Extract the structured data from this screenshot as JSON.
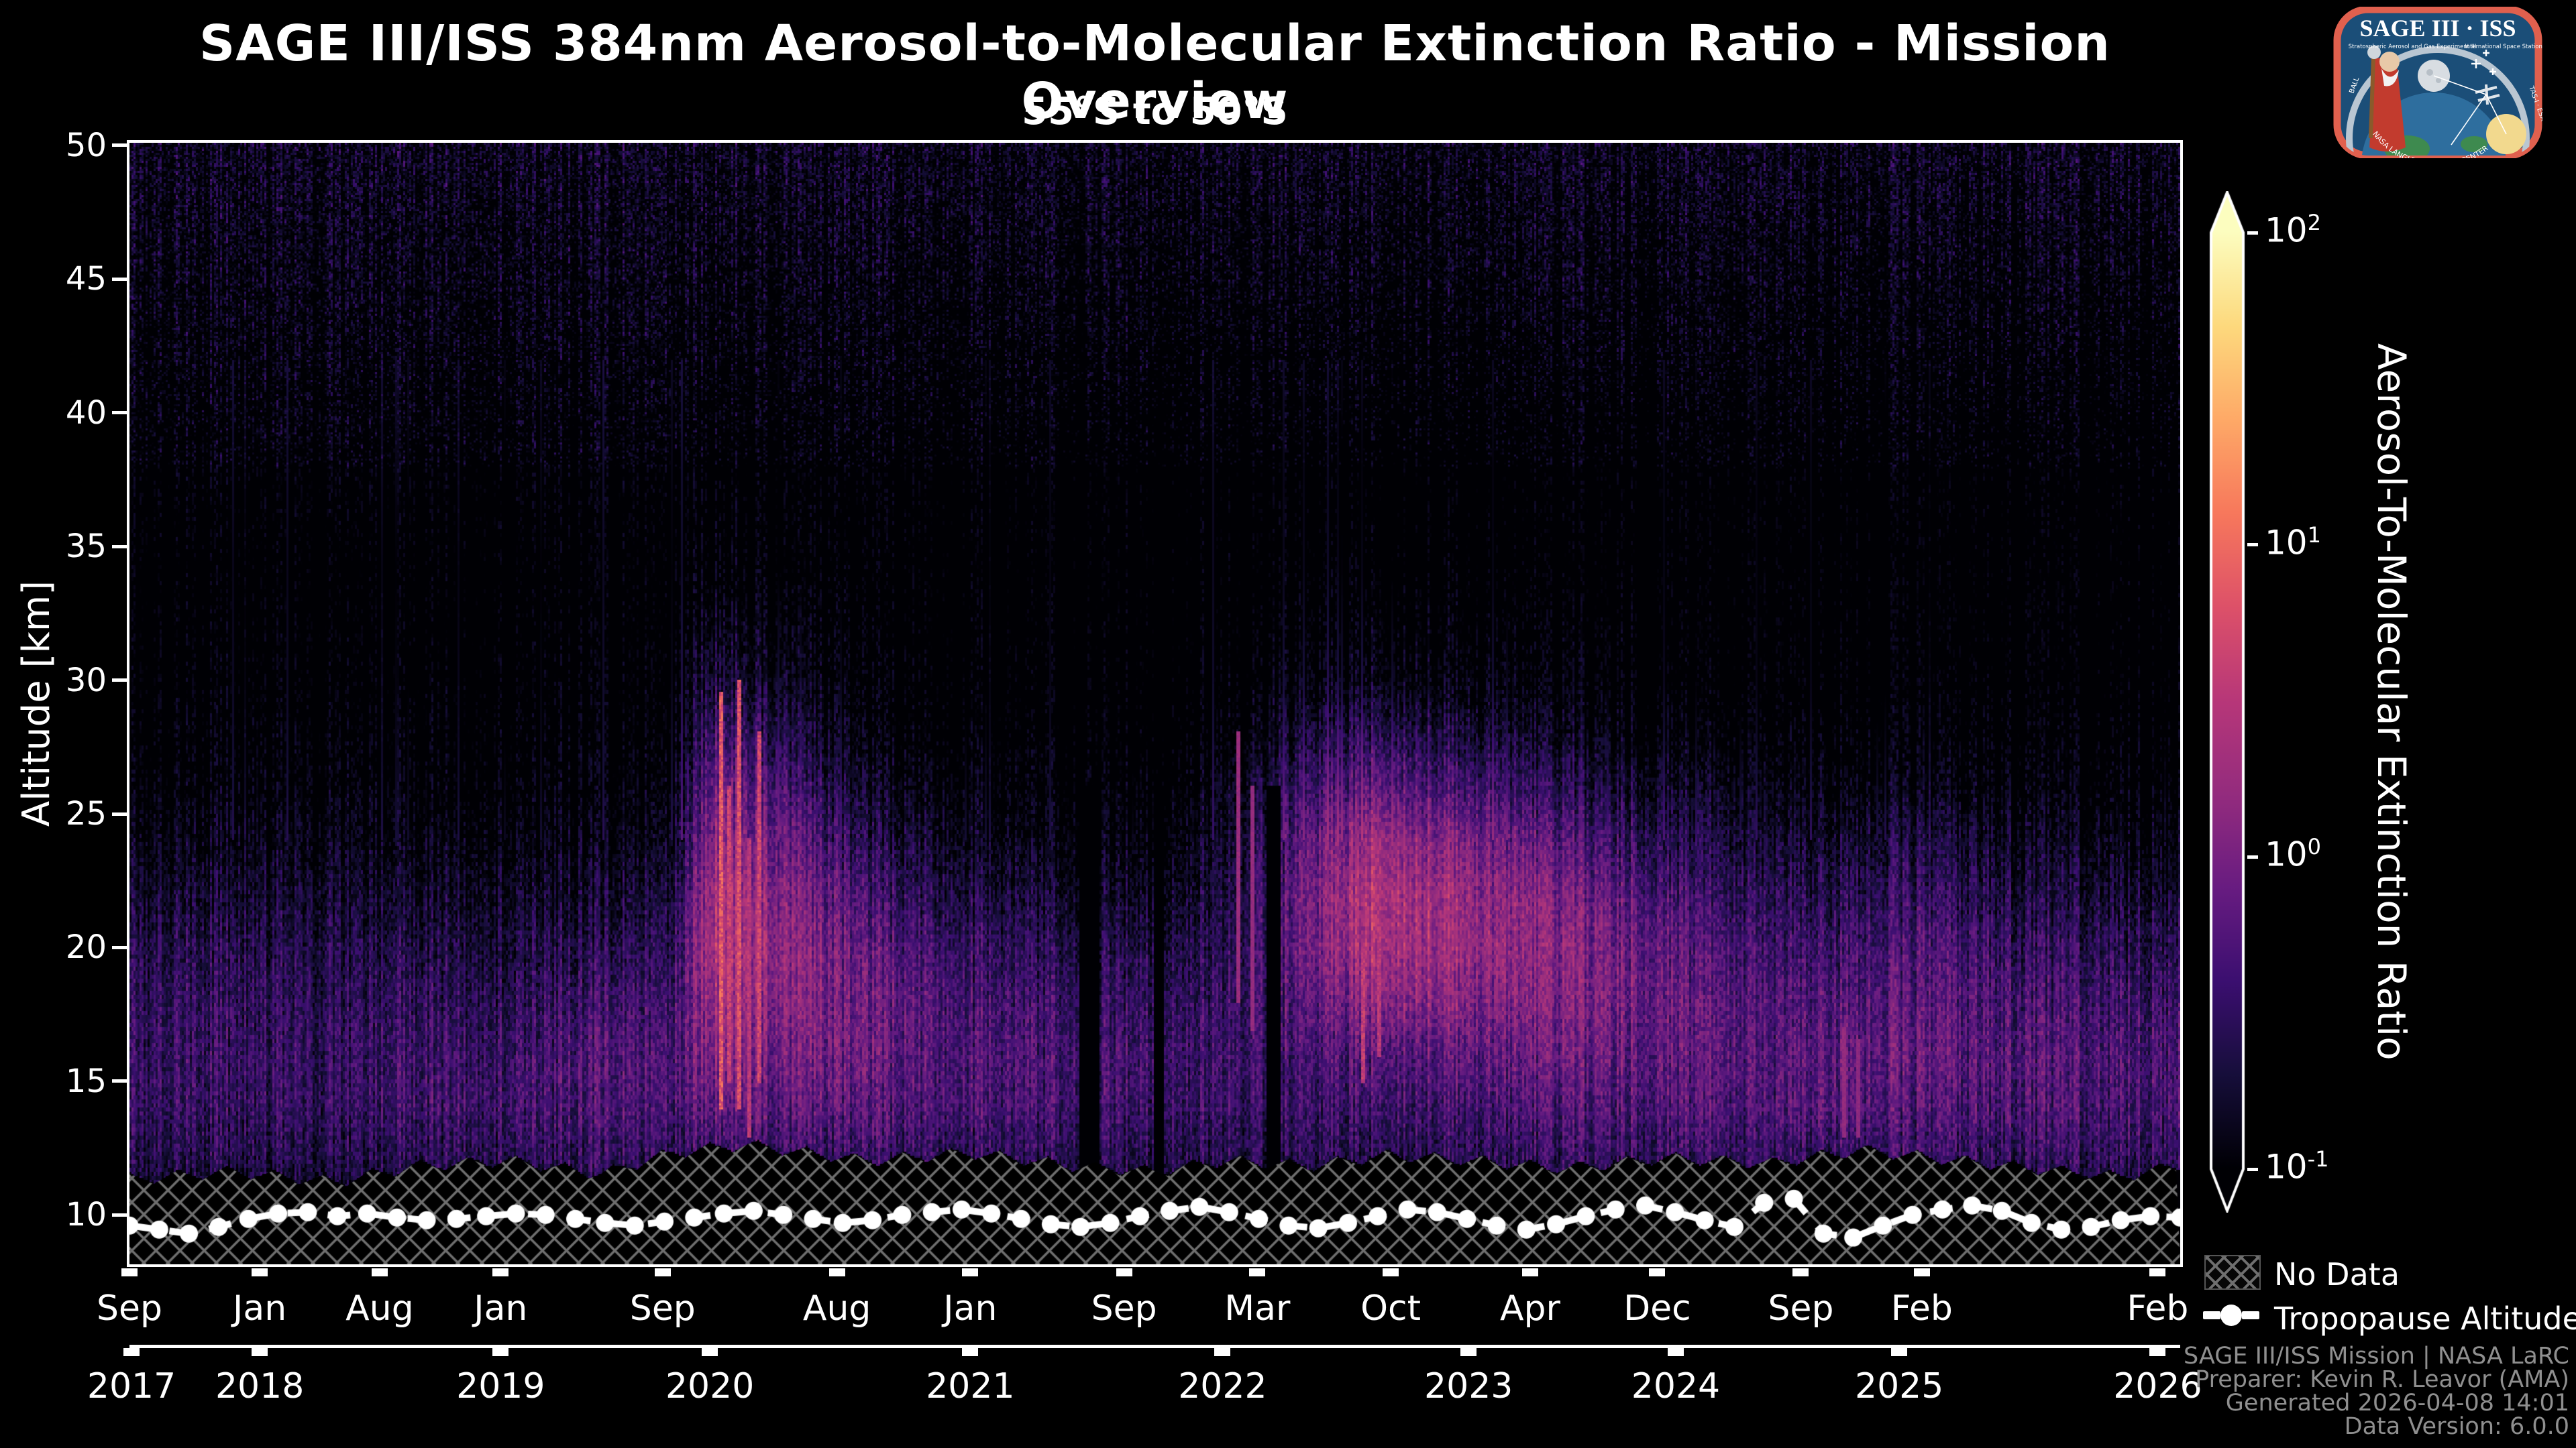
{
  "page": {
    "background": "#000000"
  },
  "header": {
    "title": "SAGE III/ISS 384nm Aerosol-to-Molecular Extinction Ratio - Mission Overview",
    "subtitle": "55°S to 50°S"
  },
  "logo": {
    "title": "SAGE III · ISS",
    "subtitle_left": "Stratospheric Aerosol and Gas Experiment III",
    "subtitle_right": "International Space Station",
    "maker_left": "BALL",
    "ring_text": "NASA LANGLEY RESEARCH CENTER",
    "maker_right": "TAS-I · ESA",
    "border_color": "#e0604e",
    "bg_color": "#1b4e78",
    "ring_color": "#b9c6d2"
  },
  "legend": {
    "no_data": "No Data",
    "tropopause": "Tropopause Altitude"
  },
  "footer": {
    "lines": [
      "SAGE III/ISS Mission | NASA LaRC",
      "Preparer: Kevin R. Leavor (AMA)",
      "Generated 2026-04-08 14:01",
      "Data Version: 6.0.0"
    ],
    "color": "#8f8f8f"
  },
  "chart_data": {
    "type": "heatmap",
    "title": "SAGE III/ISS 384nm Aerosol-to-Molecular Extinction Ratio - Mission Overview",
    "subtitle": "55°S to 50°S",
    "ylabel": "Altitude [km]",
    "colorbar_label": "Aerosol-To-Molecular Extinction Ratio",
    "grid": false,
    "y_axis": {
      "min": 8.15,
      "max": 50.1,
      "ticks": [
        50,
        45,
        40,
        35,
        30,
        25,
        20,
        15,
        10
      ]
    },
    "x_axis": {
      "month_ticks": [
        {
          "label": "Sep",
          "f": 0.0
        },
        {
          "label": "Jan",
          "f": 0.0635
        },
        {
          "label": "Aug",
          "f": 0.122
        },
        {
          "label": "Jan",
          "f": 0.181
        },
        {
          "label": "Sep",
          "f": 0.26
        },
        {
          "label": "Aug",
          "f": 0.345
        },
        {
          "label": "Jan",
          "f": 0.41
        },
        {
          "label": "Sep",
          "f": 0.485
        },
        {
          "label": "Mar",
          "f": 0.55
        },
        {
          "label": "Oct",
          "f": 0.615
        },
        {
          "label": "Apr",
          "f": 0.683
        },
        {
          "label": "Dec",
          "f": 0.745
        },
        {
          "label": "Sep",
          "f": 0.815
        },
        {
          "label": "Feb",
          "f": 0.874
        },
        {
          "label": "Feb",
          "f": 0.989
        }
      ],
      "year_ticks": [
        {
          "label": "2017",
          "f": 0.001
        },
        {
          "label": "2018",
          "f": 0.0635
        },
        {
          "label": "2019",
          "f": 0.181
        },
        {
          "label": "2020",
          "f": 0.283
        },
        {
          "label": "2021",
          "f": 0.41
        },
        {
          "label": "2022",
          "f": 0.533
        },
        {
          "label": "2023",
          "f": 0.653
        },
        {
          "label": "2024",
          "f": 0.754
        },
        {
          "label": "2025",
          "f": 0.863
        },
        {
          "label": "2026",
          "f": 0.989
        }
      ]
    },
    "colorbar": {
      "scale": "log",
      "min_exp": -1,
      "max_exp": 2,
      "ticks": [
        {
          "base": "10",
          "exp": "2",
          "value": 2
        },
        {
          "base": "10",
          "exp": "1",
          "value": 1
        },
        {
          "base": "10",
          "exp": "0",
          "value": 0
        },
        {
          "base": "10",
          "exp": "-1",
          "value": -1
        }
      ]
    },
    "colormap_stops": [
      [
        0.0,
        [
          0,
          0,
          4
        ]
      ],
      [
        0.1,
        [
          22,
          14,
          58
        ]
      ],
      [
        0.2,
        [
          59,
          15,
          112
        ]
      ],
      [
        0.3,
        [
          104,
          28,
          129
        ]
      ],
      [
        0.4,
        [
          148,
          44,
          126
        ]
      ],
      [
        0.5,
        [
          183,
          55,
          121
        ]
      ],
      [
        0.6,
        [
          221,
          81,
          105
        ]
      ],
      [
        0.7,
        [
          247,
          120,
          92
        ]
      ],
      [
        0.8,
        [
          254,
          169,
          103
        ]
      ],
      [
        0.9,
        [
          253,
          217,
          125
        ]
      ],
      [
        1.0,
        [
          252,
          253,
          191
        ]
      ]
    ],
    "heatmap": {
      "units": "log10 of aerosol-to-molecular extinction ratio",
      "alt_grid": [
        10,
        12,
        14,
        16,
        18,
        20,
        22,
        24,
        26,
        28,
        30,
        34,
        38,
        44,
        50
      ],
      "nodes": [
        {
          "f": 0.0,
          "v": [
            -0.85,
            -0.62,
            -0.48,
            -0.48,
            -0.52,
            -0.62,
            -0.78,
            -0.95,
            -1.08,
            -1.15,
            -1.2,
            -1.24,
            -1.15,
            -1.0,
            -0.88
          ]
        },
        {
          "f": 0.045,
          "v": [
            -0.85,
            -0.6,
            -0.44,
            -0.44,
            -0.5,
            -0.6,
            -0.75,
            -0.92,
            -1.05,
            -1.12,
            -1.18,
            -1.24,
            -1.15,
            -1.0,
            -0.88
          ]
        },
        {
          "f": 0.1,
          "v": [
            -0.9,
            -0.68,
            -0.52,
            -0.5,
            -0.55,
            -0.66,
            -0.8,
            -0.95,
            -1.08,
            -1.15,
            -1.2,
            -1.25,
            -1.16,
            -1.0,
            -0.88
          ]
        },
        {
          "f": 0.14,
          "v": [
            -0.82,
            -0.55,
            -0.38,
            -0.4,
            -0.5,
            -0.64,
            -0.8,
            -0.95,
            -1.08,
            -1.15,
            -1.2,
            -1.25,
            -1.16,
            -1.0,
            -0.88
          ]
        },
        {
          "f": 0.185,
          "v": [
            -0.82,
            -0.56,
            -0.4,
            -0.45,
            -0.55,
            -0.7,
            -0.85,
            -1.0,
            -1.1,
            -1.16,
            -1.2,
            -1.25,
            -1.17,
            -1.02,
            -0.9
          ]
        },
        {
          "f": 0.23,
          "v": [
            -0.78,
            -0.5,
            -0.28,
            -0.27,
            -0.4,
            -0.58,
            -0.78,
            -0.95,
            -1.1,
            -1.16,
            -1.2,
            -1.25,
            -1.17,
            -1.02,
            -0.9
          ]
        },
        {
          "f": 0.262,
          "v": [
            -0.8,
            -0.55,
            -0.36,
            -0.33,
            -0.44,
            -0.6,
            -0.76,
            -0.92,
            -1.06,
            -1.14,
            -1.2,
            -1.25,
            -1.17,
            -1.02,
            -0.9
          ]
        },
        {
          "f": 0.285,
          "v": [
            -0.75,
            -0.45,
            -0.1,
            0.12,
            0.3,
            0.42,
            0.38,
            0.18,
            -0.05,
            -0.35,
            -0.65,
            -1.05,
            -1.18,
            -1.03,
            -0.9
          ]
        },
        {
          "f": 0.31,
          "v": [
            -0.75,
            -0.45,
            -0.18,
            0.0,
            0.15,
            0.25,
            0.18,
            0.0,
            -0.25,
            -0.55,
            -0.85,
            -1.15,
            -1.2,
            -1.05,
            -0.9
          ]
        },
        {
          "f": 0.36,
          "v": [
            -0.78,
            -0.48,
            -0.25,
            -0.12,
            -0.1,
            -0.2,
            -0.4,
            -0.65,
            -0.88,
            -1.08,
            -1.18,
            -1.25,
            -1.22,
            -1.06,
            -0.92
          ]
        },
        {
          "f": 0.41,
          "v": [
            -0.82,
            -0.55,
            -0.35,
            -0.3,
            -0.36,
            -0.5,
            -0.7,
            -0.9,
            -1.06,
            -1.16,
            -1.22,
            -1.26,
            -1.24,
            -1.07,
            -0.92
          ]
        },
        {
          "f": 0.465,
          "v": [
            -0.85,
            -0.55,
            -0.38,
            -0.35,
            -0.45,
            -0.62,
            -0.82,
            -1.0,
            -1.12,
            -1.2,
            -1.25,
            -1.28,
            -1.25,
            -1.08,
            -0.92
          ]
        },
        {
          "f": 0.505,
          "v": [
            -0.88,
            -0.6,
            -0.45,
            -0.42,
            -0.5,
            -0.66,
            -0.85,
            -1.02,
            -1.12,
            -1.2,
            -1.26,
            -1.28,
            -1.25,
            -1.08,
            -0.92
          ]
        },
        {
          "f": 0.535,
          "v": [
            -0.88,
            -0.6,
            -0.45,
            -0.4,
            -0.46,
            -0.56,
            -0.66,
            -0.78,
            -0.92,
            -1.08,
            -1.18,
            -1.26,
            -1.25,
            -1.08,
            -0.92
          ]
        },
        {
          "f": 0.575,
          "v": [
            -0.88,
            -0.6,
            -0.45,
            -0.35,
            -0.2,
            -0.08,
            -0.05,
            -0.18,
            -0.45,
            -0.75,
            -1.02,
            -1.22,
            -1.26,
            -1.08,
            -0.92
          ]
        },
        {
          "f": 0.605,
          "v": [
            -0.88,
            -0.58,
            -0.4,
            -0.22,
            0.15,
            0.42,
            0.45,
            0.28,
            -0.12,
            -0.52,
            -0.92,
            -1.2,
            -1.26,
            -1.08,
            -0.92
          ]
        },
        {
          "f": 0.655,
          "v": [
            -0.84,
            -0.54,
            -0.34,
            -0.14,
            0.1,
            0.25,
            0.2,
            0.0,
            -0.38,
            -0.72,
            -1.02,
            -1.22,
            -1.26,
            -1.08,
            -0.92
          ]
        },
        {
          "f": 0.7,
          "v": [
            -0.84,
            -0.5,
            -0.3,
            -0.1,
            0.04,
            0.1,
            0.0,
            -0.26,
            -0.62,
            -0.92,
            -1.12,
            -1.26,
            -1.27,
            -1.1,
            -0.93
          ]
        },
        {
          "f": 0.75,
          "v": [
            -0.84,
            -0.5,
            -0.28,
            -0.16,
            -0.12,
            -0.18,
            -0.38,
            -0.62,
            -0.88,
            -1.1,
            -1.22,
            -1.28,
            -1.27,
            -1.1,
            -0.93
          ]
        },
        {
          "f": 0.8,
          "v": [
            -0.84,
            -0.54,
            -0.34,
            -0.3,
            -0.35,
            -0.46,
            -0.62,
            -0.82,
            -1.02,
            -1.16,
            -1.25,
            -1.28,
            -1.27,
            -1.1,
            -0.93
          ]
        },
        {
          "f": 0.83,
          "v": [
            -0.8,
            -0.48,
            -0.22,
            -0.15,
            -0.25,
            -0.4,
            -0.58,
            -0.8,
            -1.02,
            -1.16,
            -1.25,
            -1.28,
            -1.27,
            -1.1,
            -0.93
          ]
        },
        {
          "f": 0.88,
          "v": [
            -0.8,
            -0.5,
            -0.28,
            -0.18,
            -0.22,
            -0.32,
            -0.52,
            -0.72,
            -0.96,
            -1.12,
            -1.22,
            -1.28,
            -1.27,
            -1.1,
            -0.93
          ]
        },
        {
          "f": 0.93,
          "v": [
            -0.83,
            -0.52,
            -0.32,
            -0.28,
            -0.36,
            -0.52,
            -0.72,
            -0.92,
            -1.1,
            -1.2,
            -1.27,
            -1.29,
            -1.28,
            -1.1,
            -0.93
          ]
        },
        {
          "f": 0.97,
          "v": [
            -0.83,
            -0.55,
            -0.35,
            -0.32,
            -0.42,
            -0.58,
            -0.78,
            -0.97,
            -1.12,
            -1.22,
            -1.28,
            -1.3,
            -1.28,
            -1.1,
            -0.93
          ]
        },
        {
          "f": 1.0,
          "v": [
            -0.8,
            -0.5,
            -0.32,
            -0.32,
            -0.42,
            -0.58,
            -0.78,
            -0.97,
            -1.12,
            -1.22,
            -1.28,
            -1.3,
            -1.28,
            -1.1,
            -0.93
          ]
        }
      ],
      "streaks": [
        {
          "x": 0.288,
          "a0": 14,
          "a1": 29.5,
          "v": 0.85
        },
        {
          "x": 0.292,
          "a0": 15,
          "a1": 26,
          "v": 0.6
        },
        {
          "x": 0.297,
          "a0": 14,
          "a1": 30,
          "v": 0.75
        },
        {
          "x": 0.302,
          "a0": 13,
          "a1": 24,
          "v": 0.5
        },
        {
          "x": 0.306,
          "a0": 15,
          "a1": 28,
          "v": 0.65
        },
        {
          "x": 0.54,
          "a0": 18,
          "a1": 28,
          "v": 0.25
        },
        {
          "x": 0.547,
          "a0": 17,
          "a1": 26,
          "v": 0.2
        },
        {
          "x": 0.601,
          "a0": 15,
          "a1": 20,
          "v": 0.55
        },
        {
          "x": 0.609,
          "a0": 16,
          "a1": 21,
          "v": 0.5
        },
        {
          "x": 0.836,
          "a0": 13,
          "a1": 17,
          "v": 0.2
        },
        {
          "x": 0.843,
          "a0": 13,
          "a1": 16.5,
          "v": 0.15
        }
      ],
      "gaps": [
        {
          "x": 0.468,
          "w": 0.009
        },
        {
          "x": 0.502,
          "w": 0.005
        },
        {
          "x": 0.558,
          "w": 0.007
        }
      ],
      "no_data_cutoff": [
        [
          0.0,
          11.3
        ],
        [
          0.05,
          11.6
        ],
        [
          0.1,
          11.2
        ],
        [
          0.14,
          11.8
        ],
        [
          0.185,
          12.0
        ],
        [
          0.23,
          11.5
        ],
        [
          0.265,
          12.3
        ],
        [
          0.3,
          12.6
        ],
        [
          0.36,
          12.0
        ],
        [
          0.41,
          12.3
        ],
        [
          0.46,
          11.8
        ],
        [
          0.5,
          11.6
        ],
        [
          0.535,
          12.0
        ],
        [
          0.575,
          11.8
        ],
        [
          0.615,
          12.2
        ],
        [
          0.655,
          12.0
        ],
        [
          0.7,
          11.7
        ],
        [
          0.75,
          12.1
        ],
        [
          0.8,
          11.9
        ],
        [
          0.845,
          12.4
        ],
        [
          0.88,
          12.1
        ],
        [
          0.93,
          11.7
        ],
        [
          0.97,
          11.4
        ],
        [
          1.0,
          11.8
        ]
      ],
      "hatch_color": "#6f6f6f"
    },
    "tropopause": {
      "name": "Tropopause Altitude",
      "units": "km",
      "x_span": [
        0,
        1
      ],
      "altitudes": [
        9.6,
        9.45,
        9.3,
        9.55,
        9.85,
        10.05,
        10.1,
        9.95,
        10.05,
        9.9,
        9.8,
        9.85,
        9.95,
        10.05,
        10.0,
        9.85,
        9.7,
        9.6,
        9.75,
        9.9,
        10.05,
        10.15,
        10.0,
        9.85,
        9.7,
        9.8,
        10.0,
        10.1,
        10.2,
        10.05,
        9.85,
        9.65,
        9.55,
        9.7,
        9.95,
        10.15,
        10.3,
        10.1,
        9.85,
        9.6,
        9.5,
        9.7,
        9.95,
        10.2,
        10.1,
        9.85,
        9.6,
        9.45,
        9.65,
        9.95,
        10.2,
        10.35,
        10.1,
        9.8,
        9.55,
        10.45,
        10.6,
        9.3,
        9.15,
        9.6,
        10.0,
        10.2,
        10.35,
        10.15,
        9.7,
        9.45,
        9.55,
        9.8,
        9.95,
        9.9
      ]
    }
  }
}
